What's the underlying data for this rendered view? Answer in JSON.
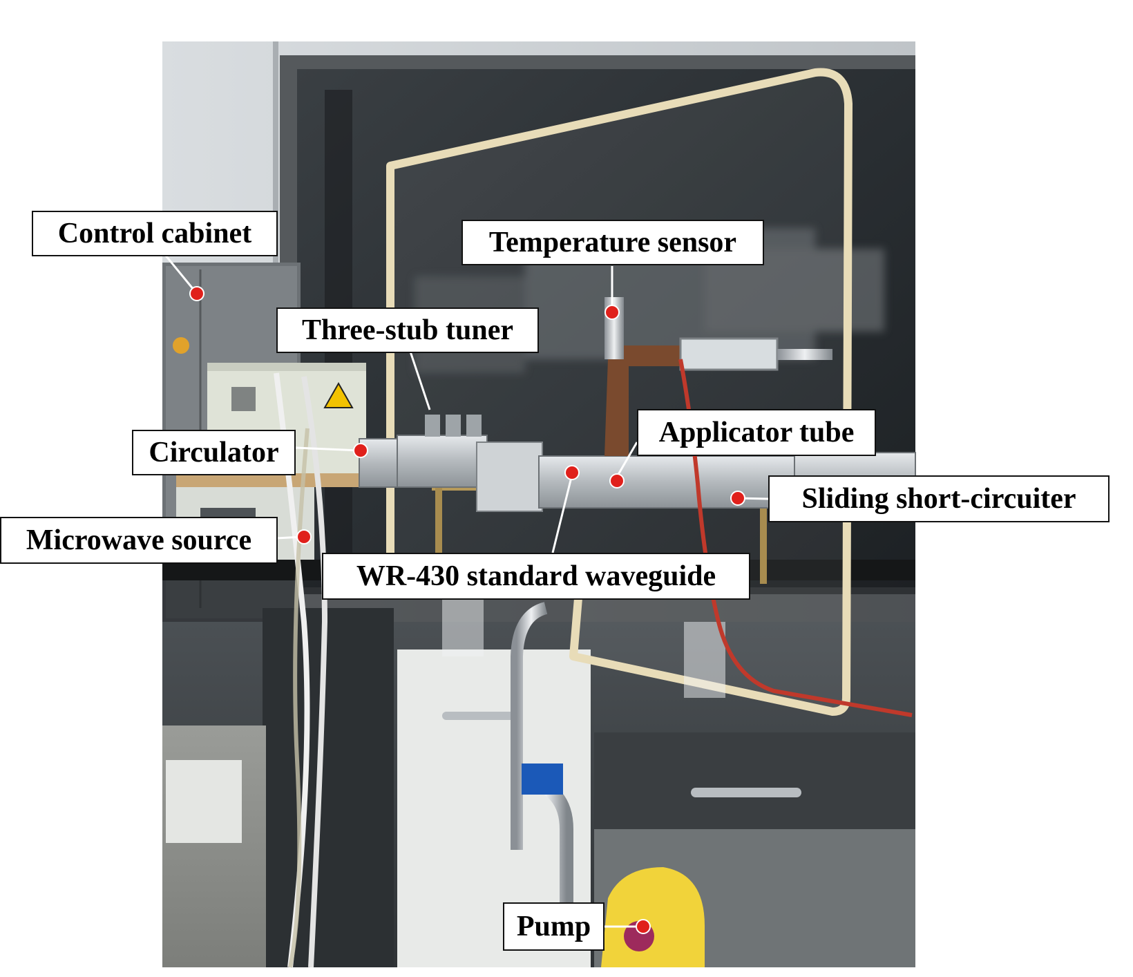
{
  "labels": {
    "control_cabinet": "Control cabinet",
    "temperature_sensor": "Temperature sensor",
    "three_stub_tuner": "Three-stub tuner",
    "circulator": "Circulator",
    "applicator_tube": "Applicator tube",
    "sliding_short_circuiter": "Sliding short-circuiter",
    "microwave_source": "Microwave source",
    "waveguide": "WR-430 standard waveguide",
    "pump": "Pump"
  },
  "colors": {
    "marker": "#e0201b",
    "leader_line": "#ffffff",
    "label_border": "#111111"
  }
}
